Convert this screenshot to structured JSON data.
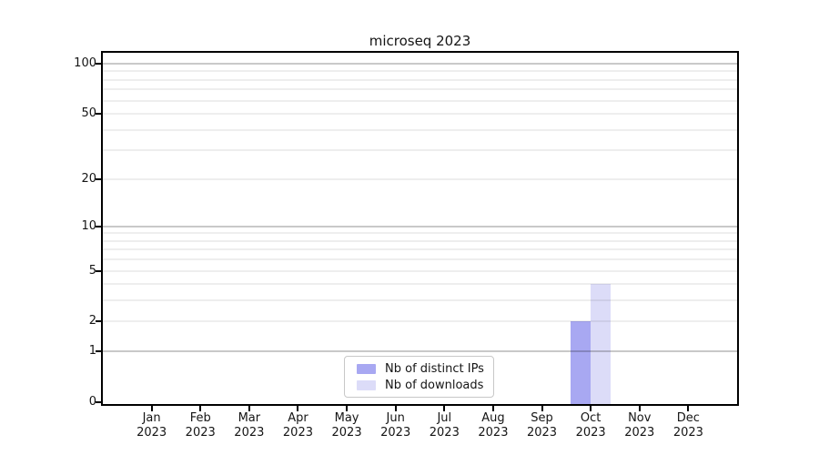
{
  "chart_data": {
    "type": "bar",
    "title": "microseq 2023",
    "categories": [
      "Jan",
      "Feb",
      "Mar",
      "Apr",
      "May",
      "Jun",
      "Jul",
      "Aug",
      "Sep",
      "Oct",
      "Nov",
      "Dec"
    ],
    "x_tick_year": "2023",
    "series": [
      {
        "name": "Nb of distinct IPs",
        "color": "#a8a8f2",
        "values": [
          0,
          0,
          0,
          0,
          0,
          0,
          0,
          0,
          0,
          2,
          0,
          0
        ]
      },
      {
        "name": "Nb of downloads",
        "color": "#dcdcf8",
        "values": [
          0,
          0,
          0,
          0,
          0,
          0,
          0,
          0,
          0,
          4,
          0,
          0
        ]
      }
    ],
    "yscale": "log1p",
    "ylim": [
      0,
      110
    ],
    "y_ticks": [
      0,
      1,
      2,
      5,
      10,
      20,
      50,
      100
    ],
    "y_major_gridlines": [
      1,
      10,
      100
    ],
    "y_minor_gridlines": [
      2,
      3,
      4,
      5,
      6,
      7,
      8,
      9,
      20,
      30,
      40,
      50,
      60,
      70,
      80,
      90
    ],
    "xlabel": "",
    "ylabel": "",
    "grid": true,
    "legend_position": "lower center"
  },
  "colors": {
    "background": "#ffffff",
    "spine": "#000000",
    "bar_distinct_ips": "#a8a8f2",
    "bar_downloads": "#dcdcf8"
  }
}
